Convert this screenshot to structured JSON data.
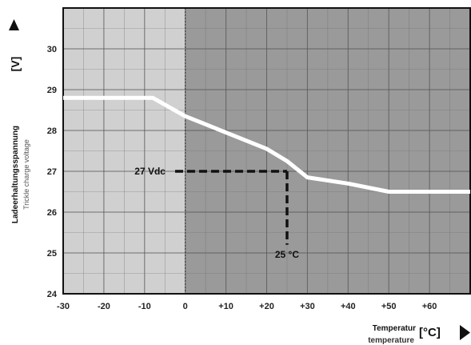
{
  "chart_data": {
    "type": "line",
    "xlabel": "Temperatur",
    "xlabel_secondary": "temperature",
    "x_unit": "[°C]",
    "ylabel": "Ladeerhaltungsspannung",
    "ylabel_secondary": "Trickle charge voltage",
    "y_unit": "[V]",
    "xlim": [
      -30,
      70
    ],
    "ylim": [
      24,
      31
    ],
    "x_ticks": [
      -30,
      -20,
      -10,
      0,
      10,
      20,
      30,
      40,
      50,
      60
    ],
    "x_tick_labels": [
      "-30",
      "-20",
      "-10",
      "0",
      "+10",
      "+20",
      "+30",
      "+40",
      "+50",
      "+60"
    ],
    "y_ticks": [
      24,
      25,
      26,
      27,
      28,
      29,
      30
    ],
    "y_tick_labels": [
      "24",
      "25",
      "26",
      "27",
      "28",
      "29",
      "30"
    ],
    "grid": true,
    "series": [
      {
        "x": [
          -30,
          -8,
          0,
          10,
          20,
          25,
          30,
          40,
          50,
          60,
          70
        ],
        "y": [
          28.8,
          28.8,
          28.35,
          27.95,
          27.55,
          27.25,
          26.85,
          26.7,
          26.5,
          26.5,
          26.5
        ]
      }
    ],
    "shaded_regions": [
      {
        "from": -30,
        "to": 0,
        "color": "#d0d0d0"
      },
      {
        "from": 0,
        "to": 70,
        "color": "#9a9a9a"
      }
    ],
    "annotations": [
      {
        "label": "27 Vdc",
        "y": 27,
        "x_from": -2.5,
        "x_to": 25
      },
      {
        "label": "25 °C",
        "x": 25,
        "y_from": 25.2,
        "y_to": 27
      }
    ]
  }
}
